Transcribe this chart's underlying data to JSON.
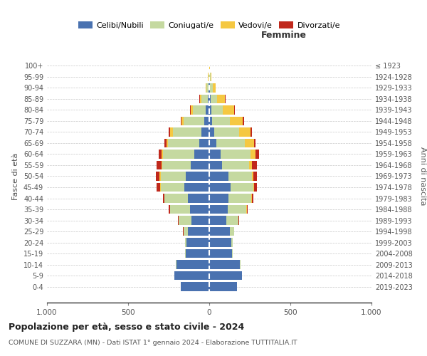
{
  "age_groups": [
    "0-4",
    "5-9",
    "10-14",
    "15-19",
    "20-24",
    "25-29",
    "30-34",
    "35-39",
    "40-44",
    "45-49",
    "50-54",
    "55-59",
    "60-64",
    "65-69",
    "70-74",
    "75-79",
    "80-84",
    "85-89",
    "90-94",
    "95-99",
    "100+"
  ],
  "birth_years": [
    "2019-2023",
    "2014-2018",
    "2009-2013",
    "2004-2008",
    "1999-2003",
    "1994-1998",
    "1989-1993",
    "1984-1988",
    "1979-1983",
    "1974-1978",
    "1969-1973",
    "1964-1968",
    "1959-1963",
    "1954-1958",
    "1949-1953",
    "1944-1948",
    "1939-1943",
    "1934-1938",
    "1929-1933",
    "1924-1928",
    "≤ 1923"
  ],
  "males": {
    "celibi": [
      175,
      215,
      200,
      145,
      140,
      130,
      110,
      120,
      130,
      155,
      145,
      115,
      90,
      60,
      50,
      30,
      20,
      10,
      5,
      2,
      1
    ],
    "coniugati": [
      2,
      2,
      5,
      5,
      10,
      30,
      80,
      120,
      145,
      145,
      155,
      175,
      195,
      195,
      175,
      130,
      80,
      40,
      12,
      4,
      1
    ],
    "vedovi": [
      0,
      0,
      0,
      0,
      0,
      0,
      0,
      1,
      2,
      3,
      5,
      5,
      8,
      10,
      15,
      12,
      15,
      8,
      3,
      1,
      0
    ],
    "divorziati": [
      0,
      0,
      0,
      0,
      0,
      1,
      2,
      8,
      8,
      20,
      25,
      30,
      20,
      10,
      8,
      5,
      3,
      2,
      1,
      0,
      0
    ]
  },
  "females": {
    "nubili": [
      170,
      200,
      190,
      140,
      135,
      125,
      105,
      115,
      120,
      130,
      120,
      80,
      70,
      45,
      30,
      18,
      12,
      8,
      5,
      2,
      1
    ],
    "coniugate": [
      2,
      2,
      4,
      4,
      8,
      28,
      75,
      115,
      140,
      140,
      145,
      165,
      185,
      175,
      155,
      110,
      70,
      40,
      15,
      5,
      1
    ],
    "vedove": [
      0,
      0,
      0,
      0,
      0,
      0,
      1,
      2,
      3,
      5,
      8,
      20,
      30,
      55,
      70,
      80,
      70,
      50,
      20,
      5,
      1
    ],
    "divorziate": [
      0,
      0,
      0,
      0,
      0,
      1,
      2,
      7,
      8,
      18,
      22,
      28,
      22,
      12,
      10,
      6,
      4,
      2,
      1,
      0,
      0
    ]
  },
  "colors": {
    "celibi_nubili": "#4a72b0",
    "coniugati_e": "#c5d9a0",
    "vedovi_e": "#f5c842",
    "divorziati_e": "#c0281c"
  },
  "title": "Popolazione per età, sesso e stato civile - 2024",
  "subtitle": "COMUNE DI SUZZARA (MN) - Dati ISTAT 1° gennaio 2024 - Elaborazione TUTTITALIA.IT",
  "xlabel_right": "Femmine",
  "ylabel": "Fasce di età",
  "ylabel_right": "Anni di nascita",
  "xlim": 1000,
  "xticks": [
    -1000,
    -500,
    0,
    500,
    1000
  ],
  "xticklabels": [
    "1.000",
    "500",
    "0",
    "500",
    "1.000"
  ],
  "bg_color": "#ffffff",
  "grid_color": "#c8c8c8"
}
